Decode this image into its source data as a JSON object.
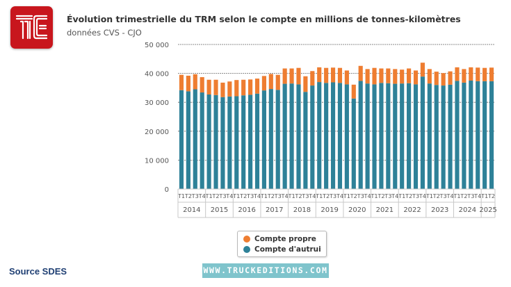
{
  "header": {
    "title": "Évolution trimestrielle du TRM selon le compte en millions de tonnes-kilomètres",
    "subtitle": "données CVS - CJO"
  },
  "logo": {
    "name": "TE monogram",
    "color": "#c8161d"
  },
  "source": "Source SDES",
  "watermark": "WWW.TRUCKEDITIONS.COM",
  "chart_data": {
    "type": "bar",
    "stacked": true,
    "title": "Évolution trimestrielle du TRM selon le compte en millions de tonnes-kilomètres",
    "subtitle": "données CVS - CJO",
    "xlabel": "",
    "ylabel": "",
    "ylim": [
      0,
      50000
    ],
    "yticks": [
      0,
      10000,
      20000,
      30000,
      40000,
      50000
    ],
    "ytick_labels": [
      "0",
      "10 000",
      "20 000",
      "30 000",
      "40 000",
      "50 000"
    ],
    "grid": true,
    "legend_position": "bottom",
    "categories": [
      "T1",
      "T2",
      "T3",
      "T4",
      "T1",
      "T2",
      "T3",
      "T4",
      "T1",
      "T2",
      "T3",
      "T4",
      "T1",
      "T2",
      "T3",
      "T4",
      "T1",
      "T2",
      "T3",
      "T4",
      "T1",
      "T2",
      "T3",
      "T4",
      "T1",
      "T2",
      "T3",
      "T4",
      "T1",
      "T2",
      "T3",
      "T4",
      "T1",
      "T2",
      "T3",
      "T4",
      "T1",
      "T2",
      "T3",
      "T4",
      "T1",
      "T2",
      "T3",
      "T4",
      "T1",
      "T2"
    ],
    "year_groups": [
      {
        "label": "2014",
        "count": 4
      },
      {
        "label": "2015",
        "count": 4
      },
      {
        "label": "2016",
        "count": 4
      },
      {
        "label": "2017",
        "count": 4
      },
      {
        "label": "2018",
        "count": 4
      },
      {
        "label": "2019",
        "count": 4
      },
      {
        "label": "2020",
        "count": 4
      },
      {
        "label": "2021",
        "count": 4
      },
      {
        "label": "2022",
        "count": 4
      },
      {
        "label": "2023",
        "count": 4
      },
      {
        "label": "2024",
        "count": 4
      },
      {
        "label": "2025",
        "count": 2
      }
    ],
    "series": [
      {
        "name": "Compte d'autrui",
        "color": "#2e8198",
        "values": [
          34200,
          33800,
          34500,
          33400,
          32700,
          32500,
          31800,
          32000,
          32100,
          32400,
          32600,
          33000,
          34100,
          34600,
          34300,
          36400,
          36500,
          36200,
          33600,
          35800,
          37000,
          36700,
          36900,
          36700,
          36200,
          31300,
          37400,
          36500,
          36200,
          36700,
          36600,
          36400,
          36500,
          36600,
          36200,
          38900,
          36500,
          36000,
          35800,
          36100,
          37400,
          36800,
          37500,
          37300,
          37300,
          37300
        ]
      },
      {
        "name": "Compte propre",
        "color": "#ee7d31",
        "values": [
          5300,
          5400,
          5200,
          5300,
          5100,
          5300,
          5000,
          5200,
          5600,
          5400,
          5300,
          5200,
          5000,
          5200,
          5200,
          5300,
          5200,
          5700,
          5400,
          5000,
          5100,
          5200,
          5100,
          5200,
          4800,
          4800,
          5200,
          5000,
          5700,
          5000,
          5100,
          5100,
          4800,
          5100,
          4800,
          4800,
          5000,
          4600,
          4300,
          4600,
          4700,
          4700,
          4600,
          4700,
          4600,
          4700
        ]
      }
    ]
  }
}
